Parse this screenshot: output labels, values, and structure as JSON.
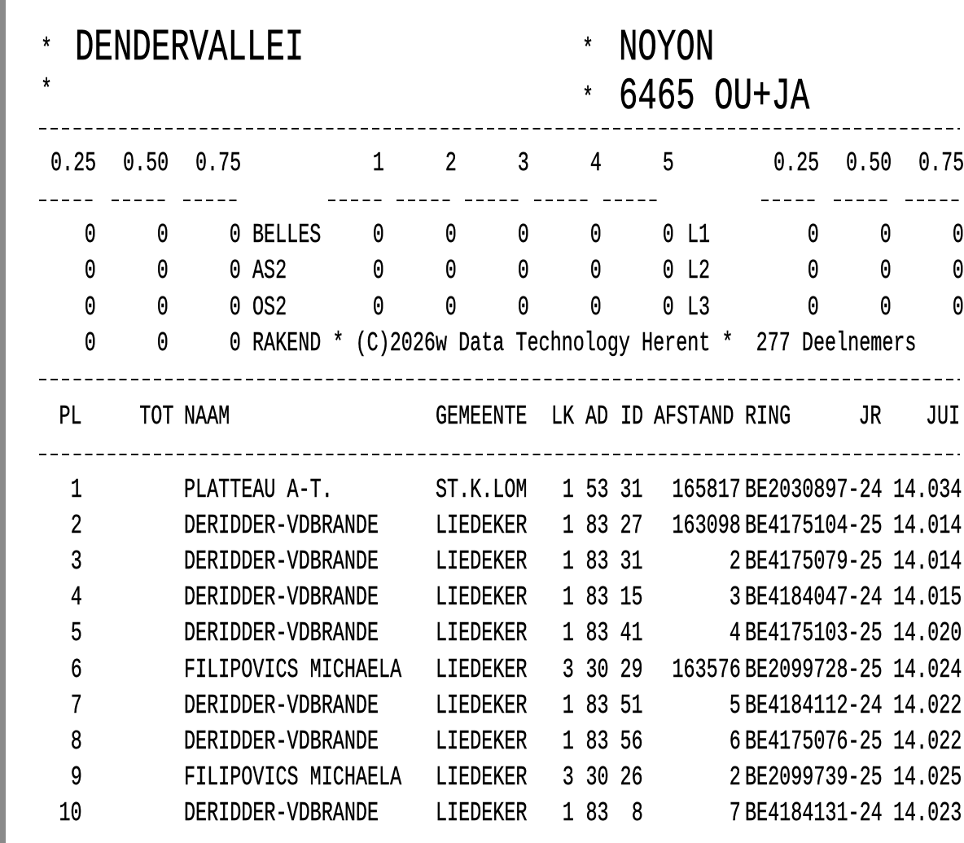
{
  "header": {
    "left_line1": "*",
    "club": "DENDERVALLEI",
    "left_line2": "*",
    "right_line1_marker": "*",
    "race": "NOYON",
    "right_line2_marker": "*",
    "race_info": "6465 OU+JA"
  },
  "summary": {
    "columns": [
      "0.25",
      "0.50",
      "0.75",
      "1",
      "2",
      "3",
      "4",
      "5",
      "0.25",
      "0.50",
      "0.75"
    ],
    "rows": [
      {
        "a": [
          "0",
          "0",
          "0"
        ],
        "label": "BELLES",
        "b": [
          "0",
          "0",
          "0",
          "0",
          "0"
        ],
        "label2": "L1",
        "c": [
          "0",
          "0",
          "0"
        ]
      },
      {
        "a": [
          "0",
          "0",
          "0"
        ],
        "label": "AS2",
        "b": [
          "0",
          "0",
          "0",
          "0",
          "0"
        ],
        "label2": "L2",
        "c": [
          "0",
          "0",
          "0"
        ]
      },
      {
        "a": [
          "0",
          "0",
          "0"
        ],
        "label": "OS2",
        "b": [
          "0",
          "0",
          "0",
          "0",
          "0"
        ],
        "label2": "L3",
        "c": [
          "0",
          "0",
          "0"
        ]
      }
    ],
    "last_row": {
      "a": [
        "0",
        "0",
        "0"
      ],
      "text": "RAKEND * (C)2026w Data Technology Herent *  277 Deelnemers"
    }
  },
  "table": {
    "headers": {
      "pl": "PL",
      "tot": "TOT",
      "naam": "NAAM",
      "gemeente": "GEMEENTE",
      "lk": "LK",
      "ad": "AD",
      "id": "ID",
      "afstand": "AFSTAND",
      "ring": "RING",
      "jr": "JR",
      "jui": "JUI"
    },
    "rows": [
      {
        "pl": "1",
        "naam": "PLATTEAU A-T.",
        "gemeente": "ST.K.LOM",
        "lk": "1",
        "ad": "53",
        "id": "31",
        "afstand": "165817",
        "ring": "BE2030897-24",
        "time": "14.034"
      },
      {
        "pl": "2",
        "naam": "DERIDDER-VDBRANDE",
        "gemeente": "LIEDEKER",
        "lk": "1",
        "ad": "83",
        "id": "27",
        "afstand": "163098",
        "ring": "BE4175104-25",
        "time": "14.014"
      },
      {
        "pl": "3",
        "naam": "DERIDDER-VDBRANDE",
        "gemeente": "LIEDEKER",
        "lk": "1",
        "ad": "83",
        "id": "31",
        "afstand": "2",
        "ring": "BE4175079-25",
        "time": "14.014"
      },
      {
        "pl": "4",
        "naam": "DERIDDER-VDBRANDE",
        "gemeente": "LIEDEKER",
        "lk": "1",
        "ad": "83",
        "id": "15",
        "afstand": "3",
        "ring": "BE4184047-24",
        "time": "14.015"
      },
      {
        "pl": "5",
        "naam": "DERIDDER-VDBRANDE",
        "gemeente": "LIEDEKER",
        "lk": "1",
        "ad": "83",
        "id": "41",
        "afstand": "4",
        "ring": "BE4175103-25",
        "time": "14.020"
      },
      {
        "pl": "6",
        "naam": "FILIPOVICS MICHAELA",
        "gemeente": "LIEDEKER",
        "lk": "3",
        "ad": "30",
        "id": "29",
        "afstand": "163576",
        "ring": "BE2099728-25",
        "time": "14.024"
      },
      {
        "pl": "7",
        "naam": "DERIDDER-VDBRANDE",
        "gemeente": "LIEDEKER",
        "lk": "1",
        "ad": "83",
        "id": "51",
        "afstand": "5",
        "ring": "BE4184112-24",
        "time": "14.022"
      },
      {
        "pl": "8",
        "naam": "DERIDDER-VDBRANDE",
        "gemeente": "LIEDEKER",
        "lk": "1",
        "ad": "83",
        "id": "56",
        "afstand": "6",
        "ring": "BE4175076-25",
        "time": "14.022"
      },
      {
        "pl": "9",
        "naam": "FILIPOVICS MICHAELA",
        "gemeente": "LIEDEKER",
        "lk": "3",
        "ad": "30",
        "id": "26",
        "afstand": "2",
        "ring": "BE2099739-25",
        "time": "14.025"
      },
      {
        "pl": "10",
        "naam": "DERIDDER-VDBRANDE",
        "gemeente": "LIEDEKER",
        "lk": "1",
        "ad": "83",
        "id": "8",
        "afstand": "7",
        "ring": "BE4184131-24",
        "time": "14.023"
      }
    ]
  }
}
